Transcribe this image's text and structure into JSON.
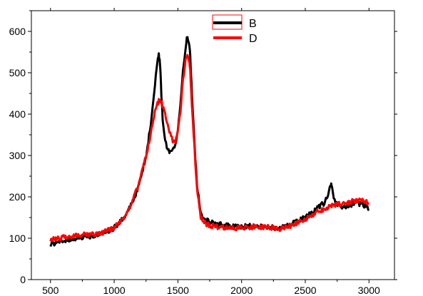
{
  "chart_data": {
    "type": "line",
    "title": "",
    "xlabel": "",
    "ylabel": "",
    "xlim": [
      350,
      3200
    ],
    "ylim": [
      0,
      650
    ],
    "x_ticks": [
      "500",
      "1000",
      "1500",
      "2000",
      "2500",
      "3000"
    ],
    "y_ticks": [
      "0",
      "100",
      "200",
      "300",
      "400",
      "500",
      "600"
    ],
    "legend_position": "top-center",
    "grid": false,
    "series": [
      {
        "name": "B",
        "color": "#000000",
        "x": [
          500,
          600,
          700,
          800,
          900,
          1000,
          1100,
          1150,
          1200,
          1250,
          1280,
          1300,
          1320,
          1340,
          1350,
          1360,
          1370,
          1380,
          1400,
          1420,
          1440,
          1460,
          1480,
          1500,
          1520,
          1540,
          1560,
          1575,
          1590,
          1600,
          1610,
          1630,
          1650,
          1680,
          1700,
          1750,
          1800,
          1900,
          2000,
          2100,
          2200,
          2300,
          2400,
          2500,
          2550,
          2600,
          2650,
          2680,
          2700,
          2710,
          2730,
          2760,
          2800,
          2850,
          2900,
          2950,
          3000
        ],
        "y": [
          85,
          95,
          100,
          105,
          110,
          125,
          160,
          190,
          235,
          300,
          360,
          410,
          470,
          530,
          545,
          520,
          450,
          390,
          340,
          315,
          305,
          310,
          330,
          360,
          420,
          500,
          560,
          590,
          570,
          520,
          450,
          330,
          230,
          160,
          145,
          140,
          135,
          130,
          128,
          130,
          128,
          125,
          135,
          150,
          160,
          175,
          185,
          210,
          232,
          225,
          190,
          180,
          175,
          180,
          185,
          182,
          170
        ]
      },
      {
        "name": "D",
        "color": "#ff0000",
        "x": [
          500,
          600,
          700,
          800,
          900,
          1000,
          1100,
          1150,
          1200,
          1250,
          1280,
          1300,
          1320,
          1340,
          1350,
          1360,
          1370,
          1380,
          1400,
          1420,
          1440,
          1460,
          1480,
          1500,
          1520,
          1540,
          1560,
          1575,
          1590,
          1600,
          1610,
          1630,
          1650,
          1680,
          1700,
          1750,
          1800,
          1900,
          2000,
          2100,
          2200,
          2300,
          2400,
          2500,
          2550,
          2600,
          2650,
          2680,
          2700,
          2710,
          2730,
          2760,
          2800,
          2850,
          2900,
          2950,
          3000
        ],
        "y": [
          95,
          103,
          106,
          110,
          112,
          125,
          160,
          195,
          240,
          300,
          340,
          375,
          405,
          425,
          432,
          435,
          430,
          420,
          400,
          375,
          350,
          335,
          335,
          360,
          410,
          480,
          530,
          540,
          525,
          490,
          420,
          320,
          220,
          150,
          138,
          132,
          128,
          125,
          125,
          128,
          127,
          122,
          132,
          145,
          155,
          165,
          170,
          175,
          178,
          180,
          180,
          182,
          185,
          188,
          190,
          190,
          185
        ]
      }
    ]
  }
}
